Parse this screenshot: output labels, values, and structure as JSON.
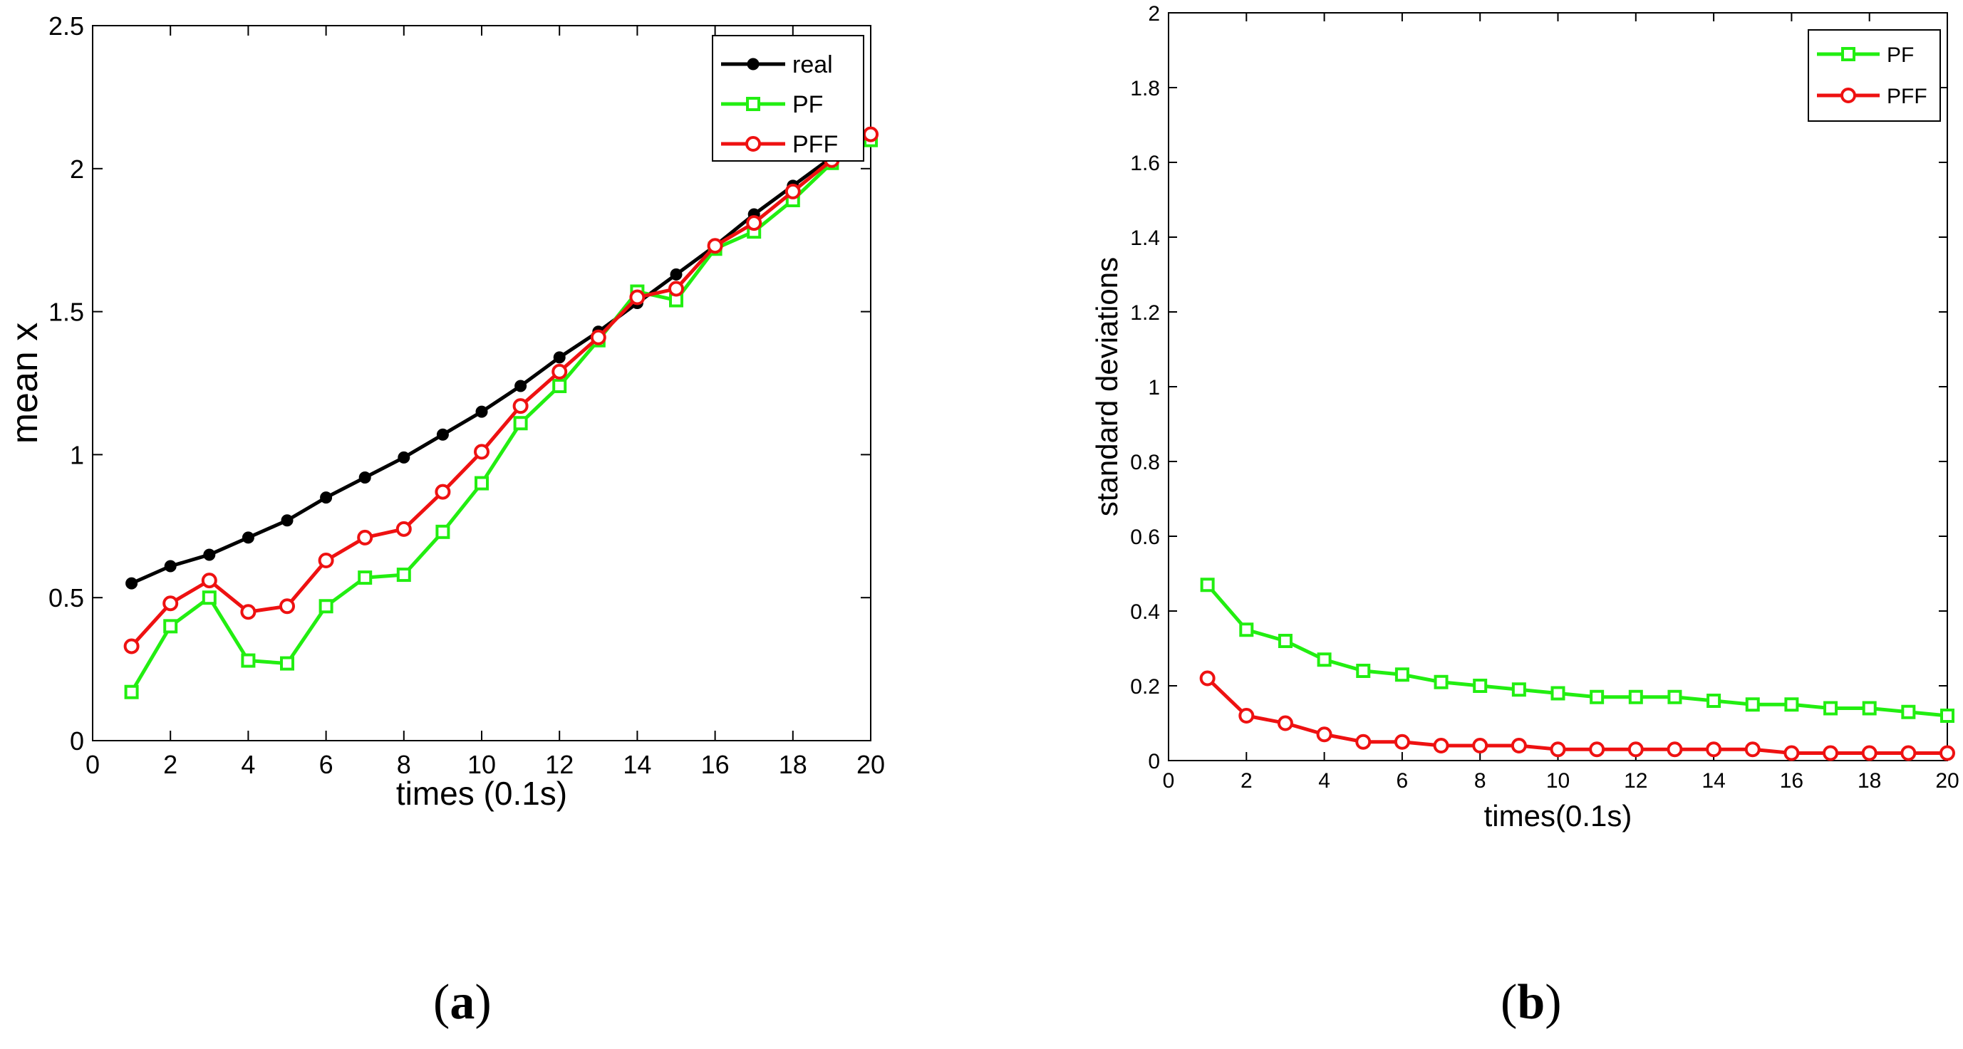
{
  "colors": {
    "real": "#000000",
    "PF": "#22ee11",
    "PFF": "#ee1111",
    "axis": "#000000",
    "background": "#ffffff"
  },
  "panels": {
    "a": {
      "open": "(",
      "letter": "a",
      "close": ")"
    },
    "b": {
      "open": "(",
      "letter": "b",
      "close": ")"
    }
  },
  "chart_data": [
    {
      "id": "a",
      "type": "line",
      "title": "",
      "xlabel": "times (0.1s)",
      "ylabel": "mean x",
      "xlim": [
        0,
        20
      ],
      "ylim": [
        0,
        2.5
      ],
      "xticks": [
        0,
        2,
        4,
        6,
        8,
        10,
        12,
        14,
        16,
        18,
        20
      ],
      "yticks": [
        0,
        0.5,
        1,
        1.5,
        2,
        2.5
      ],
      "xtick_labels": [
        "0",
        "2",
        "4",
        "6",
        "8",
        "10",
        "12",
        "14",
        "16",
        "18",
        "20"
      ],
      "ytick_labels": [
        "0",
        "0.5",
        "1",
        "1.5",
        "2",
        "2.5"
      ],
      "grid": false,
      "legend_position": "top-right",
      "x": [
        1,
        2,
        3,
        4,
        5,
        6,
        7,
        8,
        9,
        10,
        11,
        12,
        13,
        14,
        15,
        16,
        17,
        18,
        19,
        20
      ],
      "series": [
        {
          "name": "real",
          "marker": "dot",
          "values": [
            0.55,
            0.61,
            0.65,
            0.71,
            0.77,
            0.85,
            0.92,
            0.99,
            1.07,
            1.15,
            1.24,
            1.34,
            1.43,
            1.53,
            1.63,
            1.73,
            1.84,
            1.94,
            2.04,
            2.1
          ]
        },
        {
          "name": "PF",
          "marker": "square",
          "values": [
            0.17,
            0.4,
            0.5,
            0.28,
            0.27,
            0.47,
            0.57,
            0.58,
            0.73,
            0.9,
            1.11,
            1.24,
            1.4,
            1.57,
            1.54,
            1.72,
            1.78,
            1.89,
            2.02,
            2.1
          ]
        },
        {
          "name": "PFF",
          "marker": "circle",
          "values": [
            0.33,
            0.48,
            0.56,
            0.45,
            0.47,
            0.63,
            0.71,
            0.74,
            0.87,
            1.01,
            1.17,
            1.29,
            1.41,
            1.55,
            1.58,
            1.73,
            1.81,
            1.92,
            2.03,
            2.12
          ]
        }
      ]
    },
    {
      "id": "b",
      "type": "line",
      "title": "",
      "xlabel": "times(0.1s)",
      "ylabel": "standard deviations",
      "xlim": [
        0,
        20
      ],
      "ylim": [
        0,
        2
      ],
      "xticks": [
        0,
        2,
        4,
        6,
        8,
        10,
        12,
        14,
        16,
        18,
        20
      ],
      "yticks": [
        0,
        0.2,
        0.4,
        0.6,
        0.8,
        1,
        1.2,
        1.4,
        1.6,
        1.8,
        2
      ],
      "xtick_labels": [
        "0",
        "2",
        "4",
        "6",
        "8",
        "10",
        "12",
        "14",
        "16",
        "18",
        "20"
      ],
      "ytick_labels": [
        "0",
        "0.2",
        "0.4",
        "0.6",
        "0.8",
        "1",
        "1.2",
        "1.4",
        "1.6",
        "1.8",
        "2"
      ],
      "grid": false,
      "legend_position": "top-right",
      "x": [
        1,
        2,
        3,
        4,
        5,
        6,
        7,
        8,
        9,
        10,
        11,
        12,
        13,
        14,
        15,
        16,
        17,
        18,
        19,
        20
      ],
      "series": [
        {
          "name": "PF",
          "marker": "square",
          "values": [
            0.47,
            0.35,
            0.32,
            0.27,
            0.24,
            0.23,
            0.21,
            0.2,
            0.19,
            0.18,
            0.17,
            0.17,
            0.17,
            0.16,
            0.15,
            0.15,
            0.14,
            0.14,
            0.13,
            0.12
          ]
        },
        {
          "name": "PFF",
          "marker": "circle",
          "values": [
            0.22,
            0.12,
            0.1,
            0.07,
            0.05,
            0.05,
            0.04,
            0.04,
            0.04,
            0.03,
            0.03,
            0.03,
            0.03,
            0.03,
            0.03,
            0.02,
            0.02,
            0.02,
            0.02,
            0.02
          ]
        }
      ]
    }
  ]
}
